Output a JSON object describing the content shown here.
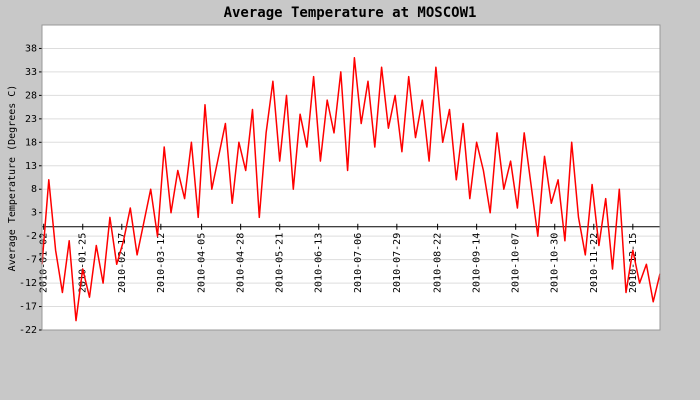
{
  "chart_data": {
    "type": "line",
    "title": "Average Temperature at MOSCOW1",
    "y_label": "Average Temperature (Degrees C)",
    "color": "#ff0000",
    "x": [
      "2010-01-01",
      "2010-01-05",
      "2010-01-09",
      "2010-01-13",
      "2010-01-17",
      "2010-01-21",
      "2010-01-25",
      "2010-01-29",
      "2010-02-02",
      "2010-02-06",
      "2010-02-10",
      "2010-02-14",
      "2010-02-18",
      "2010-02-22",
      "2010-02-26",
      "2010-03-02",
      "2010-03-06",
      "2010-03-10",
      "2010-03-14",
      "2010-03-18",
      "2010-03-22",
      "2010-03-26",
      "2010-03-30",
      "2010-04-03",
      "2010-04-07",
      "2010-04-11",
      "2010-04-15",
      "2010-04-19",
      "2010-04-23",
      "2010-04-27",
      "2010-05-01",
      "2010-05-05",
      "2010-05-09",
      "2010-05-13",
      "2010-05-17",
      "2010-05-21",
      "2010-05-25",
      "2010-05-29",
      "2010-06-02",
      "2010-06-06",
      "2010-06-10",
      "2010-06-14",
      "2010-06-18",
      "2010-06-22",
      "2010-06-26",
      "2010-06-30",
      "2010-07-04",
      "2010-07-08",
      "2010-07-12",
      "2010-07-16",
      "2010-07-20",
      "2010-07-24",
      "2010-07-28",
      "2010-08-01",
      "2010-08-05",
      "2010-08-09",
      "2010-08-13",
      "2010-08-17",
      "2010-08-21",
      "2010-08-25",
      "2010-08-29",
      "2010-09-02",
      "2010-09-06",
      "2010-09-10",
      "2010-09-14",
      "2010-09-18",
      "2010-09-22",
      "2010-09-26",
      "2010-09-30",
      "2010-10-04",
      "2010-10-08",
      "2010-10-12",
      "2010-10-16",
      "2010-10-20",
      "2010-10-24",
      "2010-10-28",
      "2010-11-01",
      "2010-11-05",
      "2010-11-09",
      "2010-11-13",
      "2010-11-17",
      "2010-11-21",
      "2010-11-25",
      "2010-11-29",
      "2010-12-03",
      "2010-12-07",
      "2010-12-11",
      "2010-12-15",
      "2010-12-19",
      "2010-12-23",
      "2010-12-27",
      "2010-12-31"
    ],
    "values": [
      -8,
      10,
      -5,
      -14,
      -3,
      -20,
      -9,
      -15,
      -4,
      -12,
      2,
      -8,
      -3,
      4,
      -6,
      1,
      8,
      -2,
      17,
      3,
      12,
      6,
      18,
      2,
      26,
      8,
      15,
      22,
      5,
      18,
      12,
      25,
      2,
      20,
      31,
      14,
      28,
      8,
      24,
      17,
      32,
      14,
      27,
      20,
      33,
      12,
      36,
      22,
      31,
      17,
      34,
      21,
      28,
      16,
      32,
      19,
      27,
      14,
      34,
      18,
      25,
      10,
      22,
      6,
      18,
      12,
      3,
      20,
      8,
      14,
      4,
      20,
      9,
      -2,
      15,
      5,
      10,
      -3,
      18,
      2,
      -6,
      9,
      -4,
      6,
      -9,
      8,
      -14,
      -5,
      -12,
      -8,
      -16,
      -10
    ],
    "xlim": [
      "2010-01-01",
      "2010-12-31"
    ],
    "xticks": [
      "2010-01-02",
      "2010-01-25",
      "2010-02-17",
      "2010-03-12",
      "2010-04-05",
      "2010-04-28",
      "2010-05-21",
      "2010-06-13",
      "2010-07-06",
      "2010-07-29",
      "2010-08-22",
      "2010-09-14",
      "2010-10-07",
      "2010-10-30",
      "2010-11-22",
      "2010-12-15"
    ],
    "ylim": [
      -22,
      43
    ],
    "yticks": [
      -22,
      -17,
      -12,
      -7,
      -2,
      3,
      8,
      13,
      18,
      23,
      28,
      33,
      38
    ],
    "grid": true
  }
}
